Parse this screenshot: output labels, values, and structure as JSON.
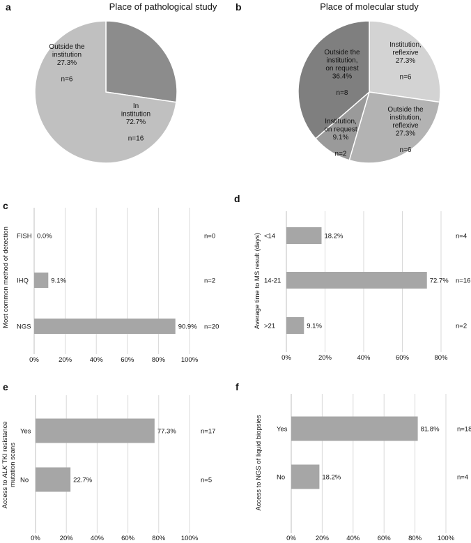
{
  "chart_data": [
    {
      "panel": "a",
      "type": "pie",
      "title": "Place of pathological study",
      "slices": [
        {
          "label": [
            "Outside the",
            "institution"
          ],
          "percent_label": "27.3%",
          "n_label": "n=6",
          "value": 27.3,
          "color": "#8c8c8c"
        },
        {
          "label": [
            "In",
            "institution"
          ],
          "percent_label": "72.7%",
          "n_label": "n=16",
          "value": 72.7,
          "color": "#c0c0c0"
        }
      ]
    },
    {
      "panel": "b",
      "type": "pie",
      "title": "Place of molecular study",
      "slices": [
        {
          "label": [
            "Institution,",
            "reflexive"
          ],
          "percent_label": "27.3%",
          "n_label": "n=6",
          "value": 27.3,
          "color": "#d3d3d3"
        },
        {
          "label": [
            "Outside the",
            "institution,",
            "reflexive"
          ],
          "percent_label": "27.3%",
          "n_label": "n=6",
          "value": 27.3,
          "color": "#b3b3b3"
        },
        {
          "label": [
            "Institution,",
            "on request"
          ],
          "percent_label": "9.1%",
          "n_label": "n=2",
          "value": 9.1,
          "color": "#9a9a9a"
        },
        {
          "label": [
            "Outside the",
            "institution,",
            "on request"
          ],
          "percent_label": "36.4%",
          "n_label": "n=8",
          "value": 36.4,
          "color": "#7f7f7f"
        }
      ]
    },
    {
      "panel": "c",
      "type": "bar",
      "orientation": "horizontal",
      "ylabel": [
        "Most common method of detection"
      ],
      "categories": [
        "FISH",
        "IHQ",
        "NGS"
      ],
      "values": [
        0.0,
        9.1,
        90.9
      ],
      "value_labels": [
        "0.0%",
        "9.1%",
        "90.9%"
      ],
      "n_labels": [
        "n=0",
        "n=2",
        "n=20"
      ],
      "xlim": [
        0,
        100
      ],
      "ticks": [
        "0%",
        "20%",
        "40%",
        "60%",
        "80%",
        "100%"
      ],
      "color": "#a6a6a6",
      "grid": true
    },
    {
      "panel": "d",
      "type": "bar",
      "orientation": "horizontal",
      "ylabel": [
        "Average time to MS result (days)"
      ],
      "categories": [
        "<14",
        "14-21",
        ">21"
      ],
      "values": [
        18.2,
        72.7,
        9.1
      ],
      "value_labels": [
        "18.2%",
        "72.7%",
        "9.1%"
      ],
      "n_labels": [
        "n=4",
        "n=16",
        "n=2"
      ],
      "xlim": [
        0,
        80
      ],
      "ticks": [
        "0%",
        "20%",
        "40%",
        "60%",
        "80%"
      ],
      "color": "#a6a6a6",
      "grid": true
    },
    {
      "panel": "e",
      "type": "bar",
      "orientation": "horizontal",
      "ylabel": [
        "Access to ALK TKI resistance",
        "mutation scans"
      ],
      "categories": [
        "Yes",
        "No"
      ],
      "values": [
        77.3,
        22.7
      ],
      "value_labels": [
        "77.3%",
        "22.7%"
      ],
      "n_labels": [
        "n=17",
        "n=5"
      ],
      "xlim": [
        0,
        100
      ],
      "ticks": [
        "0%",
        "20%",
        "40%",
        "60%",
        "80%",
        "100%"
      ],
      "color": "#a6a6a6",
      "grid": true
    },
    {
      "panel": "f",
      "type": "bar",
      "orientation": "horizontal",
      "ylabel": [
        "Access to NGS of liquid biopsies"
      ],
      "categories": [
        "Yes",
        "No"
      ],
      "values": [
        81.8,
        18.2
      ],
      "value_labels": [
        "81.8%",
        "18.2%"
      ],
      "n_labels": [
        "n=18",
        "n=4"
      ],
      "xlim": [
        0,
        100
      ],
      "ticks": [
        "0%",
        "20%",
        "40%",
        "60%",
        "80%",
        "100%"
      ],
      "color": "#a6a6a6",
      "grid": true
    }
  ]
}
